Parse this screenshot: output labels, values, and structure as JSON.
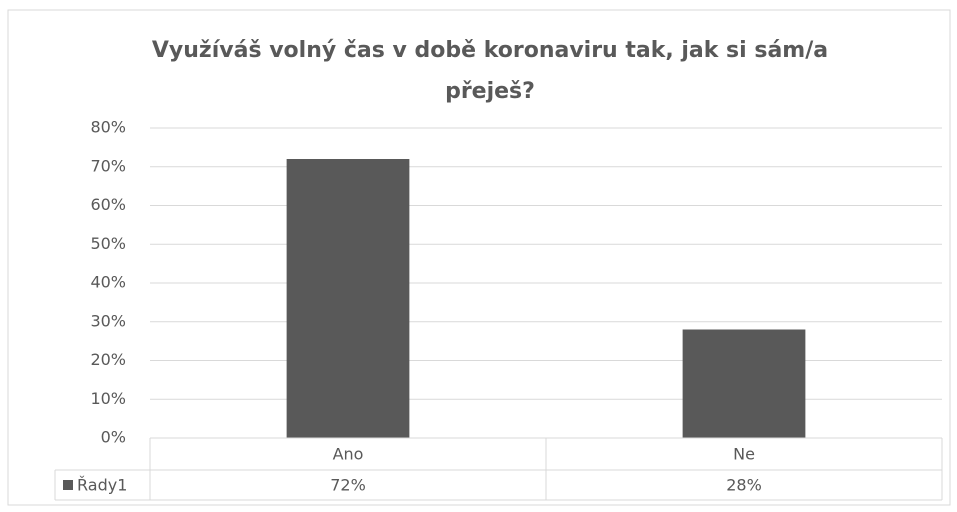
{
  "chart_data": {
    "type": "bar",
    "title": "Využíváš volný čas v době koronaviru tak, jak si sám/a přeješ?",
    "categories": [
      "Ano",
      "Ne"
    ],
    "series": [
      {
        "name": "Řady1",
        "color": "#595959",
        "values": [
          72,
          28
        ],
        "value_labels": [
          "72%",
          "28%"
        ]
      }
    ],
    "ylim": [
      0,
      80
    ],
    "yticks": [
      {
        "value": 0,
        "label": "0%"
      },
      {
        "value": 10,
        "label": "10%"
      },
      {
        "value": 20,
        "label": "20%"
      },
      {
        "value": 30,
        "label": "30%"
      },
      {
        "value": 40,
        "label": "40%"
      },
      {
        "value": 50,
        "label": "50%"
      },
      {
        "value": 60,
        "label": "60%"
      },
      {
        "value": 70,
        "label": "70%"
      },
      {
        "value": 80,
        "label": "80%"
      }
    ],
    "grid": true
  }
}
